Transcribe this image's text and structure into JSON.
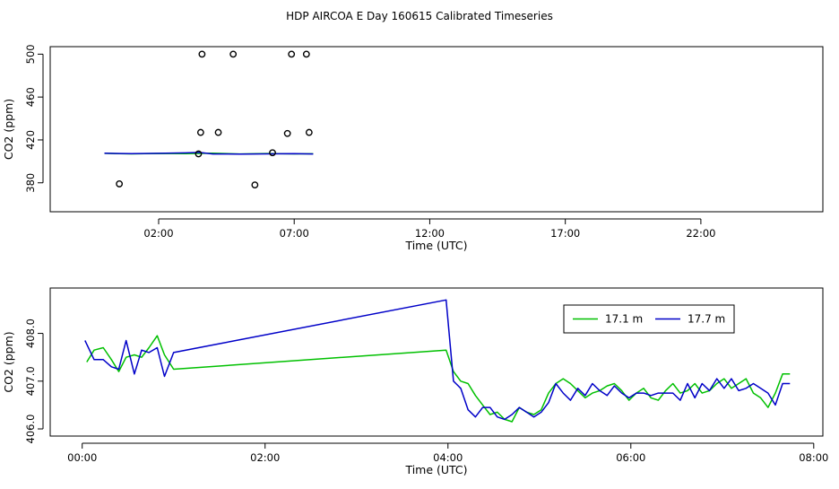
{
  "title": "HDP AIRCOA E  Day 160615  Calibrated Timeseries",
  "colors": {
    "green": "#00c000",
    "blue": "#0000c8",
    "frame": "#000000"
  },
  "chart_data": [
    {
      "type": "scatter",
      "xlabel": "Time (UTC)",
      "ylabel": "CO2 (ppm)",
      "x_unit": "hours UTC",
      "xlim": [
        -2.0,
        26.5
      ],
      "ylim": [
        353,
        507
      ],
      "x_ticks": [
        {
          "v": 2,
          "label": "02:00"
        },
        {
          "v": 7,
          "label": "07:00"
        },
        {
          "v": 12,
          "label": "12:00"
        },
        {
          "v": 17,
          "label": "17:00"
        },
        {
          "v": 22,
          "label": "22:00"
        }
      ],
      "y_ticks": [
        {
          "v": 380,
          "label": "380"
        },
        {
          "v": 420,
          "label": "420"
        },
        {
          "v": 460,
          "label": "460"
        },
        {
          "v": 500,
          "label": "500"
        }
      ],
      "outlier_points": [
        {
          "x": 0.55,
          "y": 379
        },
        {
          "x": 3.6,
          "y": 500
        },
        {
          "x": 3.55,
          "y": 427
        },
        {
          "x": 3.47,
          "y": 407
        },
        {
          "x": 4.2,
          "y": 427
        },
        {
          "x": 4.75,
          "y": 500
        },
        {
          "x": 5.55,
          "y": 378
        },
        {
          "x": 6.2,
          "y": 408
        },
        {
          "x": 6.75,
          "y": 426
        },
        {
          "x": 6.9,
          "y": 500
        },
        {
          "x": 7.45,
          "y": 500
        },
        {
          "x": 7.55,
          "y": 427
        }
      ],
      "series": [
        {
          "color": "green",
          "x": [
            0.0,
            1.0,
            2.0,
            3.0,
            4.0,
            5.0,
            6.0,
            7.0,
            7.7
          ],
          "y": [
            407.5,
            407.0,
            407.4,
            407.2,
            407.6,
            406.9,
            407.3,
            407.0,
            407.1
          ]
        },
        {
          "color": "blue",
          "x": [
            0.0,
            1.0,
            2.0,
            3.0,
            3.5,
            4.0,
            5.0,
            6.0,
            7.0,
            7.7
          ],
          "y": [
            407.6,
            407.2,
            407.5,
            407.9,
            408.3,
            406.9,
            406.8,
            407.0,
            407.2,
            406.9
          ]
        }
      ]
    },
    {
      "type": "line",
      "xlabel": "Time (UTC)",
      "ylabel": "CO2 (ppm)",
      "x_unit": "hours UTC",
      "xlim": [
        -0.35,
        8.1
      ],
      "ylim": [
        405.85,
        408.95
      ],
      "x_ticks": [
        {
          "v": 0,
          "label": "00:00"
        },
        {
          "v": 2,
          "label": "02:00"
        },
        {
          "v": 4,
          "label": "04:00"
        },
        {
          "v": 6,
          "label": "06:00"
        },
        {
          "v": 8,
          "label": "08:00"
        }
      ],
      "y_ticks": [
        {
          "v": 406.0,
          "label": "406.0"
        },
        {
          "v": 407.0,
          "label": "407.0"
        },
        {
          "v": 408.0,
          "label": "408.0"
        }
      ],
      "legend_position": "top-right",
      "series": [
        {
          "name": "17.1 m",
          "color": "green",
          "x": [
            0.05,
            0.13,
            0.23,
            0.32,
            0.4,
            0.48,
            0.57,
            0.65,
            0.73,
            0.82,
            0.9,
            1.0,
            3.98,
            4.06,
            4.14,
            4.22,
            4.3,
            4.38,
            4.46,
            4.54,
            4.62,
            4.7,
            4.78,
            4.86,
            4.94,
            5.02,
            5.1,
            5.18,
            5.26,
            5.34,
            5.42,
            5.5,
            5.58,
            5.66,
            5.74,
            5.82,
            5.9,
            5.98,
            6.06,
            6.14,
            6.22,
            6.3,
            6.38,
            6.46,
            6.54,
            6.62,
            6.7,
            6.78,
            6.86,
            6.94,
            7.02,
            7.1,
            7.18,
            7.26,
            7.34,
            7.42,
            7.5,
            7.58,
            7.66,
            7.74
          ],
          "y": [
            407.4,
            407.65,
            407.7,
            407.45,
            407.2,
            407.5,
            407.55,
            407.5,
            407.7,
            407.95,
            407.55,
            407.25,
            407.65,
            407.2,
            407.0,
            406.95,
            406.7,
            406.5,
            406.3,
            406.35,
            406.2,
            406.15,
            406.45,
            406.35,
            406.3,
            406.4,
            406.75,
            406.95,
            407.05,
            406.95,
            406.8,
            406.65,
            406.75,
            406.8,
            406.9,
            406.95,
            406.8,
            406.6,
            406.75,
            406.85,
            406.65,
            406.6,
            406.8,
            406.95,
            406.75,
            406.8,
            406.95,
            406.75,
            406.8,
            406.95,
            407.05,
            406.85,
            406.95,
            407.05,
            406.75,
            406.65,
            406.45,
            406.75,
            407.15,
            407.15
          ]
        },
        {
          "name": "17.7 m",
          "color": "blue",
          "x": [
            0.03,
            0.13,
            0.23,
            0.32,
            0.4,
            0.48,
            0.57,
            0.65,
            0.73,
            0.82,
            0.9,
            1.0,
            3.98,
            4.06,
            4.14,
            4.22,
            4.3,
            4.38,
            4.46,
            4.54,
            4.62,
            4.7,
            4.78,
            4.86,
            4.94,
            5.02,
            5.1,
            5.18,
            5.26,
            5.34,
            5.42,
            5.5,
            5.58,
            5.66,
            5.74,
            5.82,
            5.9,
            5.98,
            6.06,
            6.14,
            6.22,
            6.3,
            6.38,
            6.46,
            6.54,
            6.62,
            6.7,
            6.78,
            6.86,
            6.94,
            7.02,
            7.1,
            7.18,
            7.26,
            7.34,
            7.42,
            7.5,
            7.58,
            7.66,
            7.74
          ],
          "y": [
            407.85,
            407.45,
            407.45,
            407.3,
            407.25,
            407.85,
            407.15,
            407.65,
            407.6,
            407.7,
            407.1,
            407.6,
            408.7,
            407.0,
            406.85,
            406.4,
            406.25,
            406.45,
            406.45,
            406.25,
            406.2,
            406.3,
            406.45,
            406.35,
            406.25,
            406.35,
            406.55,
            406.95,
            406.75,
            406.6,
            406.85,
            406.7,
            406.95,
            406.8,
            406.7,
            406.9,
            406.75,
            406.65,
            406.75,
            406.75,
            406.7,
            406.75,
            406.75,
            406.75,
            406.6,
            406.95,
            406.65,
            406.95,
            406.8,
            407.05,
            406.85,
            407.05,
            406.8,
            406.85,
            406.95,
            406.85,
            406.75,
            406.5,
            406.95,
            406.95
          ]
        }
      ]
    }
  ]
}
